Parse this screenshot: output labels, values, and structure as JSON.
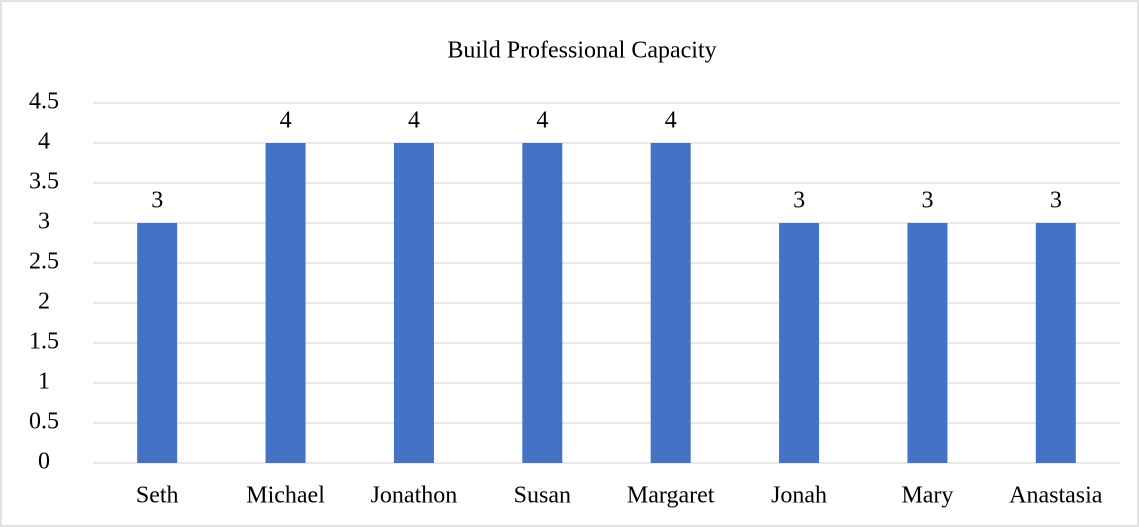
{
  "chart_data": {
    "type": "bar",
    "title": "Build Professional Capacity",
    "categories": [
      "Seth",
      "Michael",
      "Jonathon",
      "Susan",
      "Margaret",
      "Jonah",
      "Mary",
      "Anastasia"
    ],
    "values": [
      3,
      4,
      4,
      4,
      4,
      3,
      3,
      3
    ],
    "color": "#4472c4",
    "ylim": [
      0,
      4.5
    ],
    "yticks": [
      0,
      0.5,
      1,
      1.5,
      2,
      2.5,
      3,
      3.5,
      4,
      4.5
    ],
    "grid": true
  }
}
